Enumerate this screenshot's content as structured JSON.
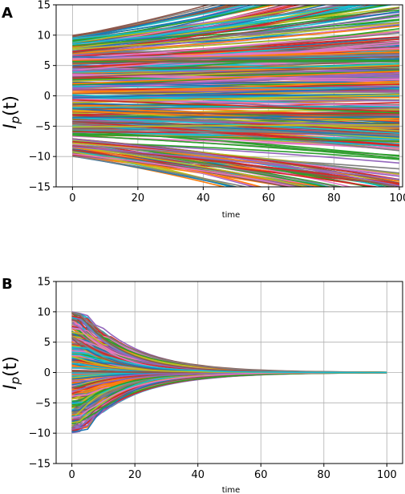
{
  "chart_data": [
    {
      "type": "line",
      "panel_label": "A",
      "ylabel": "I_p(t)",
      "ylabel_main": "I",
      "ylabel_sub": "p",
      "ylabel_tail": "(t)",
      "xlabel": "time",
      "xlim": [
        -5,
        101
      ],
      "ylim": [
        -15,
        15
      ],
      "x_ticks": [
        0,
        20,
        40,
        60,
        80,
        100
      ],
      "y_ticks": [
        -15,
        -10,
        -5,
        0,
        5,
        10,
        15
      ],
      "x_tick_labels": [
        "0",
        "20",
        "40",
        "60",
        "80",
        "100"
      ],
      "y_tick_labels": [
        "−15",
        "−10",
        "−5",
        "0",
        "5",
        "10",
        "15"
      ],
      "grid": true,
      "behavior": "diverging",
      "initial_value_range": [
        -10,
        10
      ],
      "n_series": 400,
      "x_range": [
        0,
        100
      ]
    },
    {
      "type": "line",
      "panel_label": "B",
      "ylabel": "I_p(t)",
      "ylabel_main": "I",
      "ylabel_sub": "p",
      "ylabel_tail": "(t)",
      "xlabel": "time",
      "xlim": [
        -5,
        105
      ],
      "ylim": [
        -15,
        15
      ],
      "x_ticks": [
        0,
        20,
        40,
        60,
        80,
        100
      ],
      "y_ticks": [
        -15,
        -10,
        -5,
        0,
        5,
        10,
        15
      ],
      "x_tick_labels": [
        "0",
        "20",
        "40",
        "60",
        "80",
        "100"
      ],
      "y_tick_labels": [
        "−15",
        "−10",
        "−5",
        "0",
        "5",
        "10",
        "15"
      ],
      "grid": true,
      "behavior": "converging to 0",
      "initial_value_range": [
        -10,
        10
      ],
      "n_series": 400,
      "x_range": [
        0,
        100
      ]
    }
  ],
  "colors": {
    "palette": [
      "#1f77b4",
      "#ff7f0e",
      "#2ca02c",
      "#d62728",
      "#9467bd",
      "#8c564b",
      "#e377c2",
      "#7f7f7f",
      "#bcbd22",
      "#17becf"
    ],
    "grid": "#b0b0b0",
    "axes": "#000000"
  }
}
